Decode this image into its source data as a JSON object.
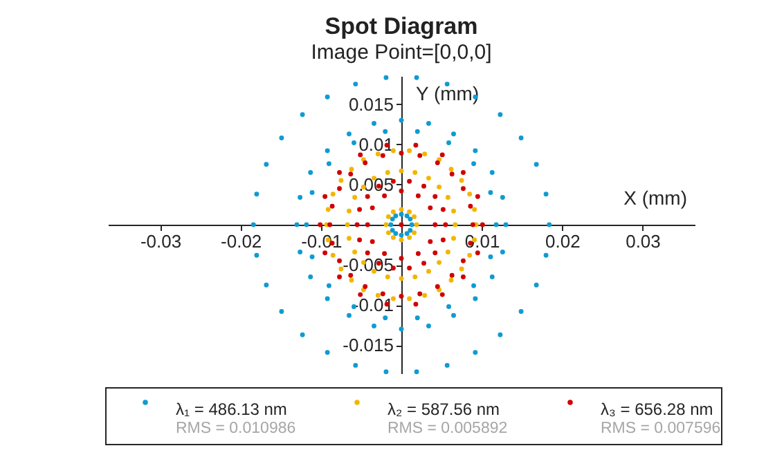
{
  "chart_data": {
    "type": "scatter",
    "title": "Spot Diagram",
    "subtitle": "Image Point=[0,0,0]",
    "xlabel": "X (mm)",
    "ylabel": "Y (mm)",
    "xlim": [
      -0.0365,
      0.0365
    ],
    "ylim": [
      -0.0185,
      0.0185
    ],
    "xticks": [
      -0.03,
      -0.02,
      -0.01,
      0.01,
      0.02,
      0.03
    ],
    "yticks": [
      -0.015,
      -0.01,
      -0.005,
      0.005,
      0.01,
      0.015
    ],
    "grid": false,
    "legend": "bottom",
    "marker": "circle",
    "annotations": [
      "RMS = 0.010986",
      "RMS = 0.005892",
      "RMS = 0.007596"
    ],
    "series": [
      {
        "name": "λ₁ = 486.13 nm",
        "color": "#0f9bd2",
        "x": [
          0.0019,
          -0.0019,
          0.0019,
          -0.0019,
          0.0057,
          -0.0057,
          0.0057,
          -0.0057,
          0.0092,
          -0.0092,
          0.0092,
          -0.0092,
          0.0123,
          -0.0123,
          0.0123,
          -0.0123,
          0.0149,
          -0.0149,
          0.0149,
          -0.0149,
          0.0168,
          -0.0168,
          0.0168,
          -0.0168,
          0.018,
          -0.018,
          0.018,
          -0.018,
          0.0184,
          -0.0184,
          0.0034,
          -0.0034,
          0.0034,
          -0.0034,
          0.0065,
          -0.0065,
          0.0065,
          -0.0065,
          0.0092,
          -0.0092,
          0.0092,
          -0.0092,
          0.0113,
          -0.0113,
          0.0113,
          -0.0113,
          0.0126,
          -0.0126,
          0.0126,
          -0.0126,
          0,
          0,
          0.013,
          -0.013,
          0.002,
          -0.002,
          0.002,
          -0.002,
          0.0059,
          -0.0059,
          0.0059,
          -0.0059,
          0.009,
          -0.009,
          0.009,
          -0.009,
          0.0111,
          -0.0111,
          0.0111,
          -0.0111,
          0.0118,
          -0.0118,
          0.0007,
          -0.0007,
          0.0007,
          -0.0007,
          0.0011,
          -0.0011,
          0.0011,
          -0.0011,
          0,
          0,
          0.0013,
          -0.0013
        ],
        "values": [
          0.0183,
          0.0183,
          -0.0183,
          -0.0183,
          0.0175,
          0.0175,
          -0.0175,
          -0.0175,
          0.0159,
          0.0159,
          -0.0159,
          -0.0159,
          0.0137,
          0.0137,
          -0.0137,
          -0.0137,
          0.0108,
          0.0108,
          -0.0108,
          -0.0108,
          0.0075,
          0.0075,
          -0.0075,
          -0.0075,
          0.0038,
          0.0038,
          -0.0038,
          -0.0038,
          0,
          0,
          0.0126,
          0.0126,
          -0.0126,
          -0.0126,
          0.0113,
          0.0113,
          -0.0113,
          -0.0113,
          0.0092,
          0.0092,
          -0.0092,
          -0.0092,
          0.0065,
          0.0065,
          -0.0065,
          -0.0065,
          0.0034,
          0.0034,
          -0.0034,
          -0.0034,
          0.013,
          -0.013,
          0,
          0,
          0.0116,
          0.0116,
          -0.0116,
          -0.0116,
          0.0102,
          0.0102,
          -0.0102,
          -0.0102,
          0.0076,
          0.0076,
          -0.0076,
          -0.0076,
          0.004,
          0.004,
          -0.004,
          -0.004,
          0,
          0,
          0.0011,
          0.0011,
          -0.0011,
          -0.0011,
          0.0007,
          0.0007,
          -0.0007,
          -0.0007,
          0.0013,
          -0.0013,
          0,
          0
        ]
      },
      {
        "name": "λ₂ = 587.56 nm",
        "color": "#f2b600",
        "x": [
          0.001,
          -0.001,
          0.001,
          -0.001,
          0.0016,
          -0.0016,
          0.0016,
          -0.0016,
          0,
          0,
          0.0019,
          -0.0019,
          0.0017,
          -0.0017,
          0.0017,
          -0.0017,
          0.0034,
          -0.0034,
          0.0034,
          -0.0034,
          0.0047,
          -0.0047,
          0.0047,
          -0.0047,
          0.0058,
          -0.0058,
          0.0058,
          -0.0058,
          0.0065,
          -0.0065,
          0.0065,
          -0.0065,
          0,
          0,
          0.0067,
          -0.0067,
          0.001,
          -0.001,
          0.001,
          -0.001,
          0.0029,
          -0.0029,
          0.0029,
          -0.0029,
          0.0047,
          -0.0047,
          0.0047,
          -0.0047,
          0.0062,
          -0.0062,
          0.0062,
          -0.0062,
          0.0075,
          -0.0075,
          0.0075,
          -0.0075,
          0.0085,
          -0.0085,
          0.0085,
          -0.0085,
          0.0091,
          -0.0091,
          0.0091,
          -0.0091,
          0.0093,
          -0.0093
        ],
        "values": [
          0.0016,
          0.0016,
          -0.0016,
          -0.0016,
          0.001,
          0.001,
          -0.001,
          -0.001,
          0.0019,
          -0.0019,
          0,
          0,
          0.0065,
          0.0065,
          -0.0065,
          -0.0065,
          0.0058,
          0.0058,
          -0.0058,
          -0.0058,
          0.0047,
          0.0047,
          -0.0047,
          -0.0047,
          0.0034,
          0.0034,
          -0.0034,
          -0.0034,
          0.0017,
          0.0017,
          -0.0017,
          -0.0017,
          0.0067,
          -0.0067,
          0,
          0,
          0.0092,
          0.0092,
          -0.0092,
          -0.0092,
          0.0088,
          0.0088,
          -0.0088,
          -0.0088,
          0.0081,
          0.0081,
          -0.0081,
          -0.0081,
          0.0069,
          0.0069,
          -0.0069,
          -0.0069,
          0.0055,
          0.0055,
          -0.0055,
          -0.0055,
          0.0038,
          0.0038,
          -0.0038,
          -0.0038,
          0.0019,
          0.0019,
          -0.0019,
          -0.0019,
          0,
          0
        ]
      },
      {
        "name": "λ₃ = 656.28 nm",
        "color": "#d00000",
        "x": [
          0,
          0.0021,
          -0.0021,
          0.0021,
          -0.0021,
          0.0036,
          -0.0036,
          0.0036,
          -0.0036,
          0,
          0,
          0.0042,
          -0.0042,
          0.001,
          -0.001,
          0.001,
          -0.001,
          0.0028,
          -0.0028,
          0.0028,
          -0.0028,
          0.0042,
          -0.0042,
          0.0042,
          -0.0042,
          0.0052,
          -0.0052,
          0.0052,
          -0.0052,
          0.0055,
          -0.0055,
          0.0023,
          -0.0023,
          0.0023,
          -0.0023,
          0.0045,
          -0.0045,
          0.0045,
          -0.0045,
          0.0063,
          -0.0063,
          0.0063,
          -0.0063,
          0.0077,
          -0.0077,
          0.0077,
          -0.0077,
          0.0086,
          -0.0086,
          0.0086,
          -0.0086,
          0,
          0,
          0.0089,
          -0.0089,
          0.0018,
          -0.0018,
          0.0018,
          -0.0018,
          0.0051,
          -0.0051,
          0.0051,
          -0.0051,
          0.0077,
          -0.0077,
          0.0077,
          -0.0077,
          0.0095,
          -0.0095,
          0.0095,
          -0.0095,
          0.0101,
          -0.0101
        ],
        "values": [
          0,
          0.0036,
          0.0036,
          -0.0036,
          -0.0036,
          0.0021,
          0.0021,
          -0.0021,
          -0.0021,
          0.0042,
          -0.0042,
          0,
          0,
          0.0054,
          0.0054,
          -0.0054,
          -0.0054,
          0.0048,
          0.0048,
          -0.0048,
          -0.0048,
          0.0035,
          0.0035,
          -0.0035,
          -0.0035,
          0.0019,
          0.0019,
          -0.0019,
          -0.0019,
          0,
          0,
          0.0086,
          0.0086,
          -0.0086,
          -0.0086,
          0.0077,
          0.0077,
          -0.0077,
          -0.0077,
          0.0063,
          0.0063,
          -0.0063,
          -0.0063,
          0.0045,
          0.0045,
          -0.0045,
          -0.0045,
          0.0023,
          0.0023,
          -0.0023,
          -0.0023,
          0.0089,
          -0.0089,
          0,
          0,
          0.0099,
          0.0099,
          -0.0099,
          -0.0099,
          0.0087,
          0.0087,
          -0.0087,
          -0.0087,
          0.0065,
          0.0065,
          -0.0065,
          -0.0065,
          0.0035,
          0.0035,
          -0.0035,
          -0.0035,
          0,
          0
        ]
      }
    ]
  }
}
